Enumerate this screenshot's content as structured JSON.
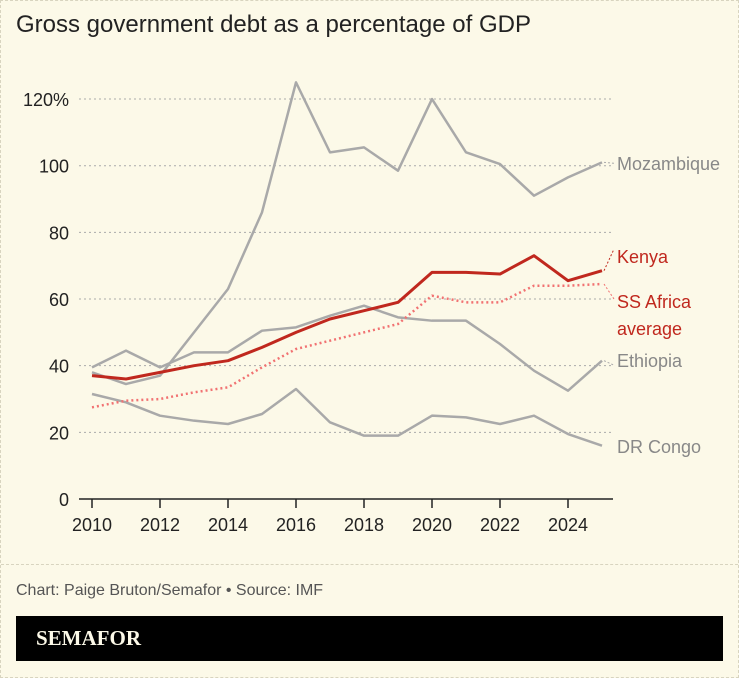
{
  "chart_data": {
    "type": "line",
    "title": "Gross government debt as a percentage of GDP",
    "x": [
      2010,
      2011,
      2012,
      2013,
      2014,
      2015,
      2016,
      2017,
      2018,
      2019,
      2020,
      2021,
      2022,
      2023,
      2024,
      2025
    ],
    "xticks": [
      "2010",
      "2012",
      "2014",
      "2016",
      "2018",
      "2020",
      "2022",
      "2024"
    ],
    "yticks": [
      "0",
      "20",
      "40",
      "60",
      "80",
      "100",
      "120%"
    ],
    "ylim": [
      0,
      125
    ],
    "grid": true,
    "series": [
      {
        "name": "Mozambique",
        "color": "#a9a9a9",
        "style": "solid",
        "values": [
          38,
          34.5,
          37,
          50,
          63,
          86,
          125,
          104,
          105.5,
          98.5,
          120,
          104,
          100.5,
          91,
          96.5,
          101
        ]
      },
      {
        "name": "Ethiopia",
        "color": "#a9a9a9",
        "style": "solid",
        "values": [
          39.5,
          44.5,
          39.5,
          44,
          44,
          50.5,
          51.5,
          55,
          58,
          54.5,
          53.5,
          53.5,
          46.5,
          38.5,
          32.5,
          41.5
        ]
      },
      {
        "name": "DR Congo",
        "color": "#a9a9a9",
        "style": "solid",
        "values": [
          31.5,
          29,
          25,
          23.5,
          22.5,
          25.5,
          33,
          23,
          19,
          19,
          25,
          24.5,
          22.5,
          25,
          19.5,
          16
        ]
      },
      {
        "name": "SS Africa average",
        "color": "#f17272",
        "style": "dotted",
        "values": [
          27.5,
          29.5,
          30,
          32,
          33.5,
          39.5,
          45,
          47.5,
          50,
          52.5,
          61,
          59,
          59,
          64,
          64,
          64.5
        ]
      },
      {
        "name": "Kenya",
        "color": "#c0281e",
        "style": "solid",
        "values": [
          37,
          36,
          38,
          40,
          41.5,
          45.5,
          50,
          54,
          56.5,
          59,
          68,
          68,
          67.5,
          73,
          65.5,
          68.5
        ]
      }
    ]
  },
  "labels": {
    "mozambique": "Mozambique",
    "kenya": "Kenya",
    "ssa1": "SS Africa",
    "ssa2": "average",
    "ethiopia": "Ethiopia",
    "drc": "DR Congo"
  },
  "credit": "Chart: Paige Bruton/Semafor • Source: IMF",
  "brand": "SEMAFOR"
}
